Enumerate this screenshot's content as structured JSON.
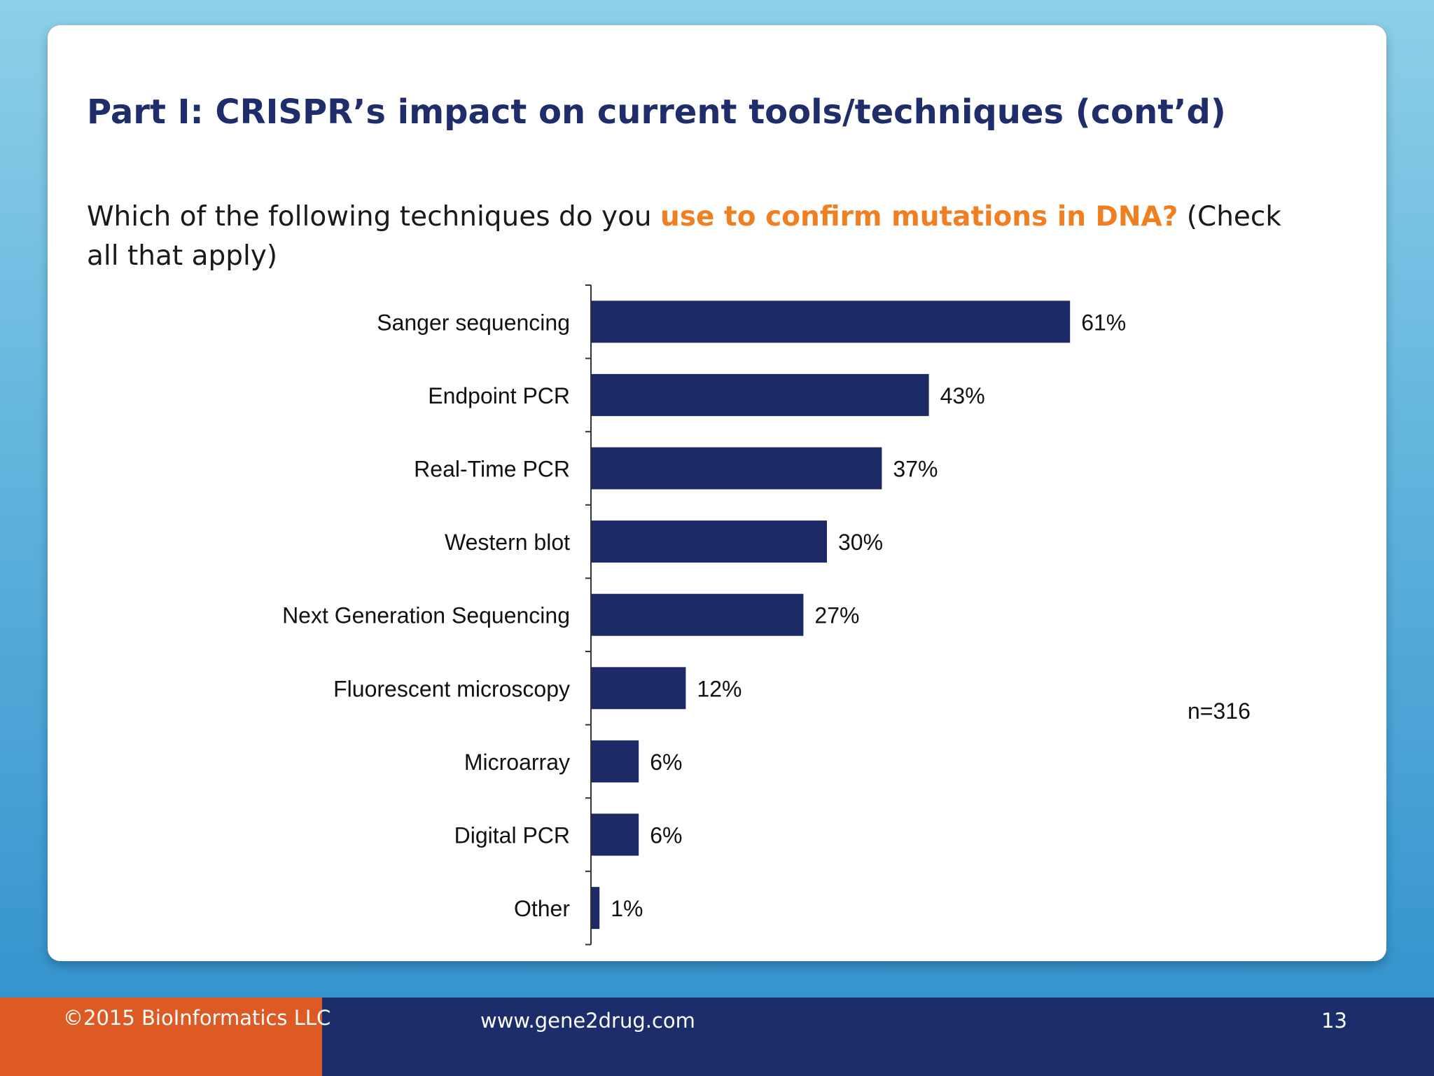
{
  "slide": {
    "title": "Part I: CRISPR’s impact on current tools/techniques (cont’d)",
    "question_before": "Which of the following techniques do you ",
    "question_highlight": "use to confirm mutations in DNA?",
    "question_after": " (Check all that apply)"
  },
  "chart_data": {
    "type": "bar",
    "orientation": "horizontal",
    "categories": [
      "Sanger sequencing",
      "Endpoint PCR",
      "Real-Time PCR",
      "Western blot",
      "Next Generation Sequencing",
      "Fluorescent microscopy",
      "Microarray",
      "Digital PCR",
      "Other"
    ],
    "values": [
      61,
      43,
      37,
      30,
      27,
      12,
      6,
      6,
      1
    ],
    "value_labels": [
      "61%",
      "43%",
      "37%",
      "30%",
      "27%",
      "12%",
      "6%",
      "6%",
      "1%"
    ],
    "unit": "%",
    "annotation": "n=316",
    "bar_color": "#1c2a66",
    "xlim": [
      0,
      100
    ],
    "grid": false
  },
  "footer": {
    "copyright": "©2015 BioInformatics LLC",
    "website": "www.gene2drug.com",
    "page_number": "13"
  },
  "colors": {
    "title": "#1f2d6b",
    "highlight": "#f07f22",
    "footer_left": "#dd5a24",
    "footer_right": "#1c2d6b"
  }
}
